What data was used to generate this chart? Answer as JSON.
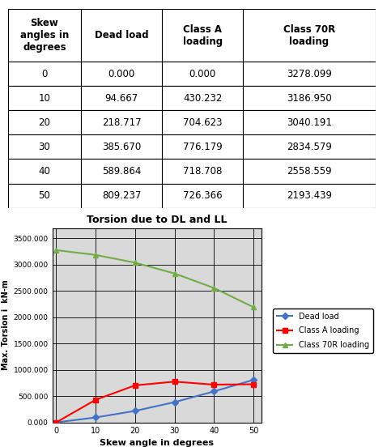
{
  "skew_angles": [
    0,
    10,
    20,
    30,
    40,
    50
  ],
  "dead_load": [
    0.0,
    94.667,
    218.717,
    385.67,
    589.864,
    809.237
  ],
  "class_a": [
    0.0,
    430.232,
    704.623,
    776.179,
    718.708,
    726.366
  ],
  "class_70r": [
    3278.099,
    3186.95,
    3040.191,
    2834.579,
    2558.559,
    2193.439
  ],
  "col_headers": [
    "Skew\nangles in\ndegrees",
    "Dead load",
    "Class A\nloading",
    "Class 70R\nloading"
  ],
  "chart_title": "Torsion due to DL and LL",
  "xlabel": "Skew angle in degrees",
  "ylabel": "Max. Torsion i  kN-m",
  "yticks": [
    0,
    500,
    1000,
    1500,
    2000,
    2500,
    3000,
    3500
  ],
  "ytick_labels": [
    "0.000",
    "500.000",
    "1000.000",
    "1500.000",
    "2000.000",
    "2500.000",
    "3000.000",
    "3500.000"
  ],
  "dead_load_color": "#4472C4",
  "class_a_color": "#FF0000",
  "class_70r_color": "#70AD47",
  "bg_color": "#D9D9D9",
  "legend_labels": [
    "Dead load",
    "Class A loading",
    "Class 70R loading"
  ]
}
